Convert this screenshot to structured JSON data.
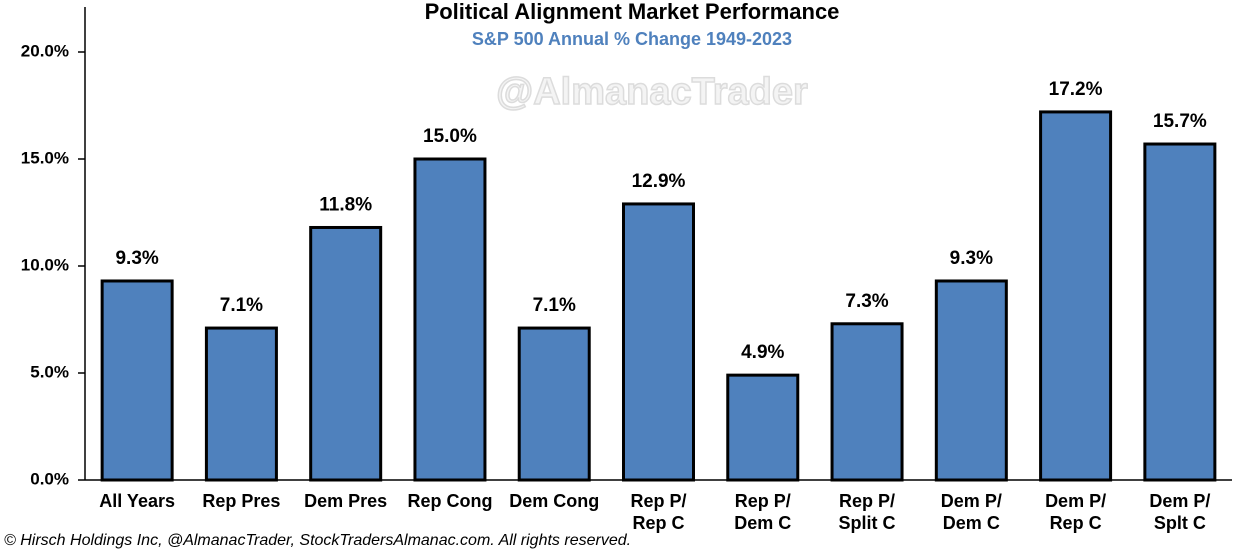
{
  "chart_data": {
    "type": "bar",
    "title": "Political Alignment Market Performance",
    "subtitle": "S&P 500 Annual % Change 1949-2023",
    "watermark": "@AlmanacTrader",
    "footer": "© Hirsch Holdings Inc, @AlmanacTrader, StockTradersAlmanac.com. All rights reserved.",
    "categories": [
      "All Years",
      "Rep Pres",
      "Dem Pres",
      "Rep Cong",
      "Dem Cong",
      "Rep P/\nRep C",
      "Rep P/\nDem C",
      "Rep P/\nSplit C",
      "Dem P/\nDem C",
      "Dem P/\nRep C",
      "Dem P/\nSplt C"
    ],
    "values": [
      9.3,
      7.1,
      11.8,
      15.0,
      7.1,
      12.9,
      4.9,
      7.3,
      9.3,
      17.2,
      15.7
    ],
    "value_labels": [
      "9.3%",
      "7.1%",
      "11.8%",
      "15.0%",
      "7.1%",
      "12.9%",
      "4.9%",
      "7.3%",
      "9.3%",
      "17.2%",
      "15.7%"
    ],
    "color": "#4f81bd",
    "ylim": [
      0,
      20
    ],
    "yticks": [
      {
        "value": 0,
        "label": "0.0%"
      },
      {
        "value": 5,
        "label": "5.0%"
      },
      {
        "value": 10,
        "label": "10.0%"
      },
      {
        "value": 15,
        "label": "15.0%"
      },
      {
        "value": 20,
        "label": "20.0%"
      }
    ],
    "grid": false
  }
}
